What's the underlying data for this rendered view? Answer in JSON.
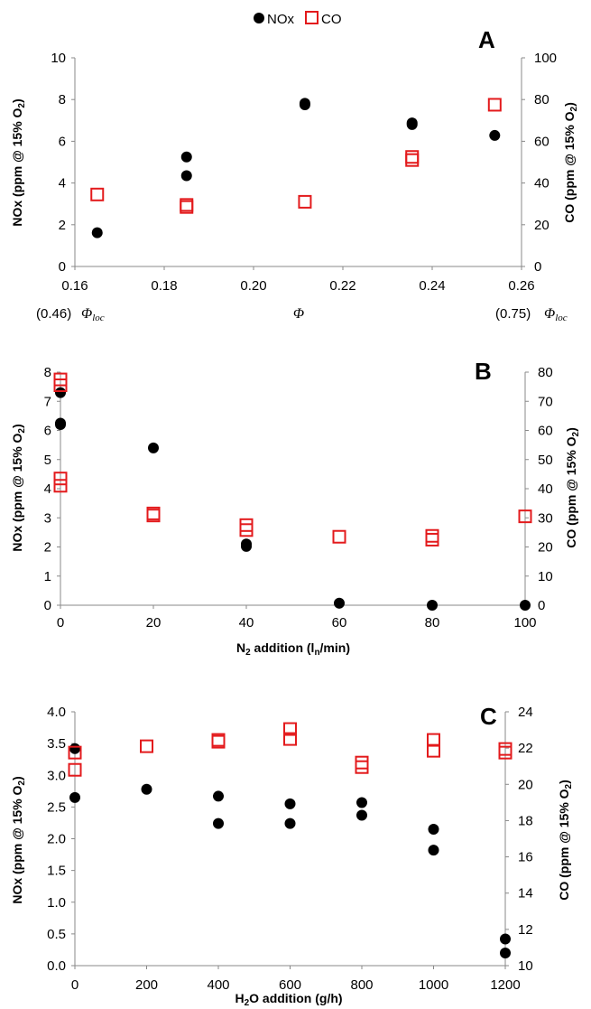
{
  "legend": {
    "nox": "NOx",
    "co": "CO",
    "nox_color": "#000000",
    "co_color": "#e31a1c"
  },
  "chart_data": [
    {
      "type": "scatter",
      "panel": "A",
      "xlabel": "Φ",
      "ylabel": "NOx (ppm @ 15% O2)",
      "ylabel_right": "CO (ppm @ 15% O2)",
      "xlim": [
        0.16,
        0.26
      ],
      "ylim": [
        0,
        10
      ],
      "ylim_right": [
        0,
        100
      ],
      "x_ticks": [
        "0.16",
        "0.18",
        "0.20",
        "0.22",
        "0.24",
        "0.26"
      ],
      "y_ticks": [
        "0",
        "2",
        "4",
        "6",
        "8",
        "10"
      ],
      "y_ticks_right": [
        "0",
        "20",
        "40",
        "60",
        "80",
        "100"
      ],
      "annotation_left": {
        "value": "(0.46)",
        "symbol": "Φloc"
      },
      "annotation_right": {
        "value": "(0.75)",
        "symbol": "Φloc"
      },
      "series": [
        {
          "name": "NOx",
          "axis": "left",
          "marker": "filled-circle",
          "points": [
            [
              0.165,
              1.62
            ],
            [
              0.185,
              5.25
            ],
            [
              0.185,
              4.35
            ],
            [
              0.2115,
              7.75
            ],
            [
              0.2115,
              7.82
            ],
            [
              0.2355,
              6.8
            ],
            [
              0.2355,
              6.88
            ],
            [
              0.254,
              6.28
            ]
          ]
        },
        {
          "name": "CO",
          "axis": "right",
          "marker": "open-square",
          "points": [
            [
              0.165,
              34.5
            ],
            [
              0.185,
              28.5
            ],
            [
              0.185,
              29.5
            ],
            [
              0.2115,
              31.0
            ],
            [
              0.2355,
              51.0
            ],
            [
              0.2355,
              52.5
            ],
            [
              0.254,
              77.5
            ]
          ]
        }
      ]
    },
    {
      "type": "scatter",
      "panel": "B",
      "xlabel": "N2 addition (ln/min)",
      "ylabel": "NOx (ppm @ 15% O2)",
      "ylabel_right": "CO (ppm @ 15% O2)",
      "xlim": [
        0,
        100
      ],
      "ylim": [
        0,
        8
      ],
      "ylim_right": [
        0,
        80
      ],
      "x_ticks": [
        "0",
        "20",
        "40",
        "60",
        "80",
        "100"
      ],
      "y_ticks": [
        "0",
        "1",
        "2",
        "3",
        "4",
        "5",
        "6",
        "7",
        "8"
      ],
      "y_ticks_right": [
        "0",
        "10",
        "20",
        "30",
        "40",
        "50",
        "60",
        "70",
        "80"
      ],
      "series": [
        {
          "name": "NOx",
          "axis": "left",
          "marker": "filled-circle",
          "points": [
            [
              0,
              7.3
            ],
            [
              0,
              6.25
            ],
            [
              0,
              6.2
            ],
            [
              20,
              5.4
            ],
            [
              40,
              2.1
            ],
            [
              40,
              2.02
            ],
            [
              60,
              0.07
            ],
            [
              80,
              0.0
            ],
            [
              100,
              0.0
            ]
          ]
        },
        {
          "name": "CO",
          "axis": "right",
          "marker": "open-square",
          "points": [
            [
              0,
              77.5
            ],
            [
              0,
              75.5
            ],
            [
              0,
              43.5
            ],
            [
              0,
              41.0
            ],
            [
              20,
              31.5
            ],
            [
              20,
              30.8
            ],
            [
              40,
              27.5
            ],
            [
              40,
              25.8
            ],
            [
              60,
              23.5
            ],
            [
              80,
              23.8
            ],
            [
              80,
              22.5
            ],
            [
              100,
              30.5
            ]
          ]
        }
      ]
    },
    {
      "type": "scatter",
      "panel": "C",
      "xlabel": "H2O addition (g/h)",
      "ylabel": "NOx (ppm @ 15% O2)",
      "ylabel_right": "CO (ppm @ 15% O2)",
      "xlim": [
        0,
        1200
      ],
      "ylim": [
        0,
        4
      ],
      "ylim_right": [
        10,
        24
      ],
      "x_ticks": [
        "0",
        "200",
        "400",
        "600",
        "800",
        "1000",
        "1200"
      ],
      "y_ticks": [
        "0.0",
        "0.5",
        "1.0",
        "1.5",
        "2.0",
        "2.5",
        "3.0",
        "3.5",
        "4.0"
      ],
      "y_ticks_right": [
        "10",
        "12",
        "14",
        "16",
        "18",
        "20",
        "22",
        "24"
      ],
      "series": [
        {
          "name": "NOx",
          "axis": "left",
          "marker": "filled-circle",
          "points": [
            [
              0,
              3.42
            ],
            [
              0,
              2.65
            ],
            [
              200,
              2.78
            ],
            [
              400,
              2.67
            ],
            [
              400,
              2.24
            ],
            [
              600,
              2.55
            ],
            [
              600,
              2.24
            ],
            [
              800,
              2.57
            ],
            [
              800,
              2.37
            ],
            [
              1000,
              2.15
            ],
            [
              1000,
              1.82
            ],
            [
              1200,
              0.42
            ],
            [
              1200,
              0.2
            ]
          ]
        },
        {
          "name": "CO",
          "axis": "right",
          "marker": "open-square",
          "points": [
            [
              0,
              21.75
            ],
            [
              0,
              20.8
            ],
            [
              200,
              22.1
            ],
            [
              400,
              22.45
            ],
            [
              400,
              22.35
            ],
            [
              600,
              23.05
            ],
            [
              600,
              22.5
            ],
            [
              800,
              21.2
            ],
            [
              800,
              20.95
            ],
            [
              1000,
              22.45
            ],
            [
              1000,
              21.85
            ],
            [
              1200,
              21.95
            ],
            [
              1200,
              21.75
            ]
          ]
        }
      ]
    }
  ]
}
